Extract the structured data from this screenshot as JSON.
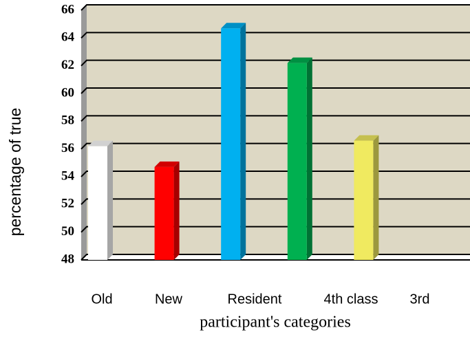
{
  "chart_data": {
    "type": "bar",
    "x_label": "participant's categories",
    "y_label": "percentage of true",
    "categories": [
      "Old",
      "New",
      "Resident",
      null,
      "4th class",
      "3rd"
    ],
    "values": [
      56.2,
      54.7,
      64.7,
      62.2,
      56.6,
      null
    ],
    "colors": [
      "#ffffff",
      "#ff0000",
      "#00b0f0",
      "#00b050",
      "#f0ea60",
      "#cccccc"
    ],
    "ylim": [
      48,
      66
    ],
    "yticks": [
      48,
      50,
      52,
      54,
      56,
      58,
      60,
      62,
      64,
      66
    ],
    "grid": true
  }
}
